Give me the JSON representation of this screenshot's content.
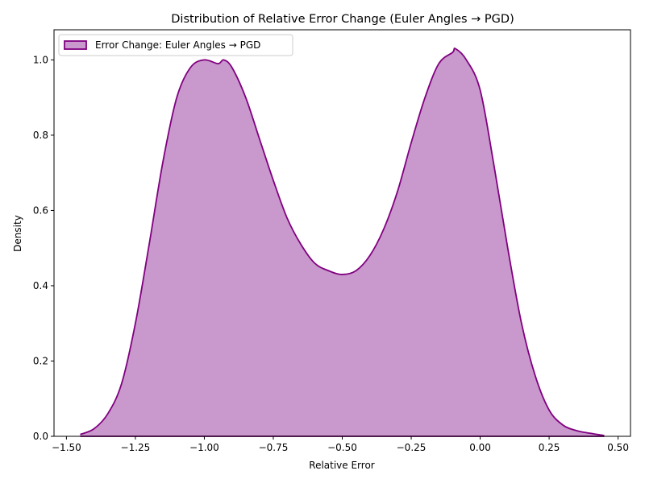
{
  "chart_data": {
    "type": "area",
    "title": "Distribution of Relative Error Change (Euler Angles → PGD)",
    "xlabel": "Relative Error",
    "ylabel": "Density",
    "xlim": [
      -1.545,
      0.545
    ],
    "ylim": [
      0,
      1.08
    ],
    "xticks": [
      -1.5,
      -1.25,
      -1.0,
      -0.75,
      -0.5,
      -0.25,
      0.0,
      0.25,
      0.5
    ],
    "xtick_labels": [
      "−1.50",
      "−1.25",
      "−1.00",
      "−0.75",
      "−0.50",
      "−0.25",
      "0.00",
      "0.25",
      "0.50"
    ],
    "yticks": [
      0,
      0.2,
      0.4,
      0.6,
      0.8,
      1.0
    ],
    "ytick_labels": [
      "0.0",
      "0.2",
      "0.4",
      "0.6",
      "0.8",
      "1.0"
    ],
    "grid": false,
    "legend_position": "top-left",
    "series": [
      {
        "name": "Error Change: Euler Angles → PGD",
        "line_color": "#800080",
        "fill_color": "#c998cc",
        "x": [
          -1.45,
          -1.4,
          -1.35,
          -1.3,
          -1.25,
          -1.2,
          -1.15,
          -1.1,
          -1.05,
          -1.0,
          -0.95,
          -0.93,
          -0.9,
          -0.85,
          -0.8,
          -0.75,
          -0.7,
          -0.65,
          -0.6,
          -0.55,
          -0.5,
          -0.45,
          -0.4,
          -0.35,
          -0.3,
          -0.25,
          -0.2,
          -0.15,
          -0.1,
          -0.09,
          -0.05,
          0.0,
          0.05,
          0.1,
          0.15,
          0.2,
          0.25,
          0.3,
          0.35,
          0.4,
          0.45
        ],
        "y": [
          0.005,
          0.02,
          0.06,
          0.14,
          0.3,
          0.51,
          0.73,
          0.9,
          0.98,
          1.0,
          0.99,
          1.0,
          0.98,
          0.9,
          0.79,
          0.68,
          0.58,
          0.51,
          0.46,
          0.44,
          0.43,
          0.44,
          0.48,
          0.55,
          0.65,
          0.78,
          0.9,
          0.99,
          1.02,
          1.03,
          1.0,
          0.92,
          0.72,
          0.5,
          0.3,
          0.16,
          0.07,
          0.03,
          0.015,
          0.008,
          0.002
        ]
      }
    ]
  }
}
